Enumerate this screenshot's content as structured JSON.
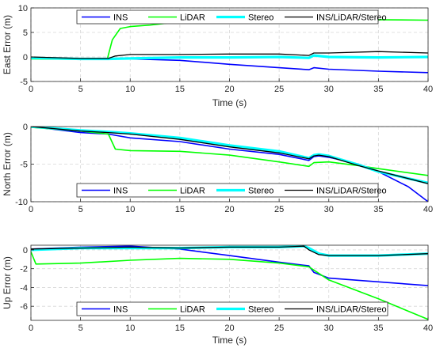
{
  "chart_data": [
    {
      "type": "line",
      "xlabel": "Time (s)",
      "ylabel": "East Error (m)",
      "xlim": [
        0,
        40
      ],
      "ylim": [
        -5,
        10
      ],
      "xticks": [
        "0",
        "5",
        "10",
        "15",
        "20",
        "25",
        "30",
        "35",
        "40"
      ],
      "yticks": [
        "-5",
        "0",
        "5",
        "10"
      ],
      "grid": true,
      "legend_position": "top",
      "series": [
        {
          "name": "INS",
          "color": "#0000ff",
          "x": [
            0,
            5,
            7.8,
            10,
            15,
            20,
            25,
            28,
            28.5,
            30,
            35,
            40
          ],
          "y": [
            -0.3,
            -0.3,
            -0.3,
            -0.4,
            -0.7,
            -1.5,
            -2.2,
            -2.6,
            -2.2,
            -2.5,
            -2.9,
            -3.2
          ]
        },
        {
          "name": "LiDAR",
          "color": "#00ff00",
          "x": [
            0,
            5,
            7.7,
            8.2,
            9,
            10,
            12,
            15,
            20,
            25,
            30,
            35,
            40
          ],
          "y": [
            -0.4,
            -0.5,
            -0.4,
            3.5,
            5.8,
            6.2,
            6.5,
            7.2,
            7.7,
            7.9,
            7.7,
            7.6,
            7.5
          ]
        },
        {
          "name": "Stereo",
          "color": "#00ffff",
          "x": [
            0,
            5,
            7.8,
            10,
            15,
            20,
            25,
            28,
            28.5,
            30,
            35,
            40
          ],
          "y": [
            -0.2,
            -0.4,
            -0.4,
            -0.3,
            -0.1,
            -0.1,
            0.0,
            -0.2,
            0.3,
            0.0,
            -0.1,
            0.0
          ]
        },
        {
          "name": "INS/LiDAR/Stereo",
          "color": "#000000",
          "x": [
            0,
            5,
            7.8,
            8.5,
            10,
            15,
            20,
            25,
            28,
            28.5,
            30,
            35,
            40
          ],
          "y": [
            0.0,
            -0.3,
            -0.3,
            0.2,
            0.5,
            0.5,
            0.6,
            0.6,
            0.3,
            0.8,
            0.8,
            1.1,
            0.8
          ]
        }
      ]
    },
    {
      "type": "line",
      "xlabel": "",
      "ylabel": "North Error (m)",
      "xlim": [
        0,
        40
      ],
      "ylim": [
        -10,
        0
      ],
      "xticks": [
        "0",
        "5",
        "10",
        "15",
        "20",
        "25",
        "30",
        "35",
        "40"
      ],
      "yticks": [
        "-10",
        "-5",
        "0"
      ],
      "grid": true,
      "legend_position": "bottom",
      "series": [
        {
          "name": "INS",
          "color": "#0000ff",
          "x": [
            0,
            5,
            7.8,
            10,
            15,
            20,
            25,
            28,
            28.5,
            29,
            30,
            33,
            35,
            38,
            40
          ],
          "y": [
            0,
            -0.8,
            -1.0,
            -1.5,
            -2.0,
            -3.0,
            -3.7,
            -4.5,
            -4.0,
            -3.9,
            -4.1,
            -5.0,
            -6.0,
            -8.0,
            -10.0
          ]
        },
        {
          "name": "LiDAR",
          "color": "#00ff00",
          "x": [
            0,
            5,
            7.8,
            8.5,
            10,
            15,
            20,
            25,
            28,
            28.5,
            30,
            33,
            35,
            40
          ],
          "y": [
            -0.1,
            -0.6,
            -1.0,
            -3.0,
            -3.2,
            -3.3,
            -3.8,
            -4.7,
            -5.3,
            -4.8,
            -4.7,
            -5.2,
            -5.6,
            -6.5
          ]
        },
        {
          "name": "Stereo",
          "color": "#00ffff",
          "x": [
            0,
            5,
            7.8,
            10,
            15,
            20,
            25,
            28,
            28.5,
            29,
            30,
            33,
            35,
            40
          ],
          "y": [
            0,
            -0.5,
            -0.7,
            -0.9,
            -1.5,
            -2.5,
            -3.3,
            -4.2,
            -3.8,
            -3.7,
            -3.9,
            -5.1,
            -6.0,
            -7.5
          ]
        },
        {
          "name": "INS/LiDAR/Stereo",
          "color": "#000000",
          "x": [
            0,
            5,
            7.8,
            10,
            15,
            20,
            25,
            28,
            28.5,
            29,
            30,
            33,
            35,
            40
          ],
          "y": [
            0,
            -0.6,
            -0.8,
            -1.0,
            -1.7,
            -2.7,
            -3.5,
            -4.3,
            -3.9,
            -3.8,
            -4.0,
            -5.2,
            -5.9,
            -7.6
          ]
        }
      ]
    },
    {
      "type": "line",
      "xlabel": "Time (s)",
      "ylabel": "Up Error (m)",
      "xlim": [
        0,
        40
      ],
      "ylim": [
        -7.5,
        0.5
      ],
      "xticks": [
        "0",
        "5",
        "10",
        "15",
        "20",
        "25",
        "30",
        "35",
        "40"
      ],
      "yticks": [
        "-6",
        "-4",
        "-2",
        "0"
      ],
      "grid": true,
      "legend_position": "bottom",
      "series": [
        {
          "name": "INS",
          "color": "#0000ff",
          "x": [
            0,
            5,
            10,
            15,
            20,
            25,
            28,
            28.5,
            30,
            35,
            40
          ],
          "y": [
            0.1,
            0.3,
            0.4,
            0.1,
            -0.6,
            -1.3,
            -1.7,
            -2.4,
            -3.0,
            -3.4,
            -3.8
          ]
        },
        {
          "name": "LiDAR",
          "color": "#00ff00",
          "x": [
            0,
            0.5,
            5,
            10,
            15,
            20,
            25,
            28,
            30,
            35,
            40
          ],
          "y": [
            -0.2,
            -1.5,
            -1.4,
            -1.1,
            -0.9,
            -1.0,
            -1.4,
            -1.8,
            -3.2,
            -5.2,
            -7.4
          ]
        },
        {
          "name": "Stereo",
          "color": "#00ffff",
          "x": [
            0,
            5,
            10,
            15,
            20,
            25,
            27.5,
            28,
            29,
            30,
            35,
            40
          ],
          "y": [
            0.0,
            0.2,
            0.2,
            0.2,
            0.3,
            0.3,
            0.4,
            0.2,
            -0.4,
            -0.6,
            -0.6,
            -0.4
          ]
        },
        {
          "name": "INS/LiDAR/Stereo",
          "color": "#000000",
          "x": [
            0,
            5,
            10,
            15,
            20,
            25,
            27.5,
            28,
            29,
            30,
            35,
            40
          ],
          "y": [
            0.1,
            0.2,
            0.3,
            0.2,
            0.3,
            0.3,
            0.4,
            0.0,
            -0.5,
            -0.6,
            -0.6,
            -0.4
          ]
        }
      ]
    }
  ]
}
